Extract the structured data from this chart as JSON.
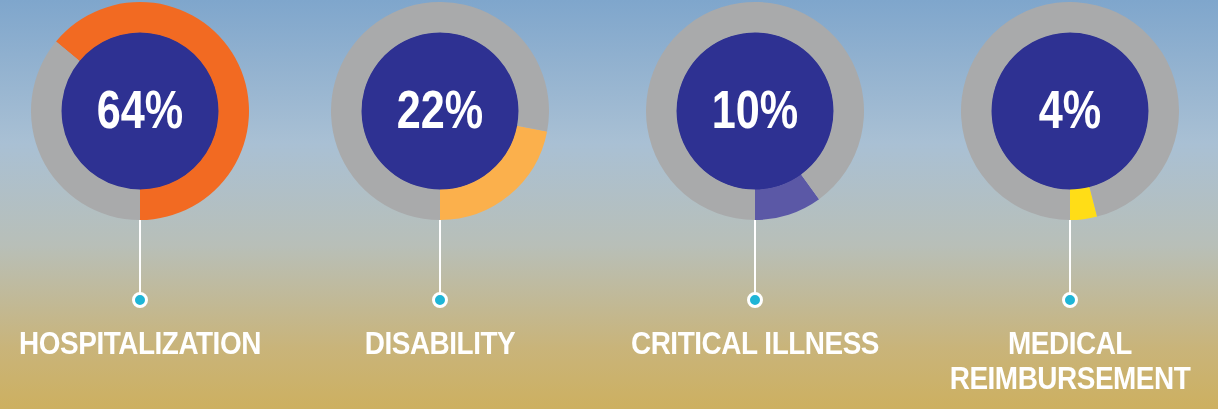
{
  "chart_data": [
    {
      "type": "donut",
      "categories": [
        "HOSPITALIZATION",
        null
      ],
      "values": [
        64,
        36
      ],
      "colors": [
        "#f26a22",
        "#a9aaab"
      ],
      "annotations": [
        "64%"
      ]
    },
    {
      "type": "donut",
      "categories": [
        "DISABILITY",
        null
      ],
      "values": [
        22,
        78
      ],
      "colors": [
        "#fbb04c",
        "#a9aaab"
      ],
      "annotations": [
        "22%"
      ]
    },
    {
      "type": "donut",
      "categories": [
        "CRITICAL ILLNESS",
        null
      ],
      "values": [
        10,
        90
      ],
      "colors": [
        "#5b58a6",
        "#a9aaab"
      ],
      "annotations": [
        "10%"
      ]
    },
    {
      "type": "donut",
      "categories": [
        "MEDICAL REIMBURSEMENT",
        null
      ],
      "values": [
        4,
        96
      ],
      "colors": [
        "#ffdd17",
        "#a9aaab"
      ],
      "annotations": [
        "4%"
      ]
    }
  ]
}
